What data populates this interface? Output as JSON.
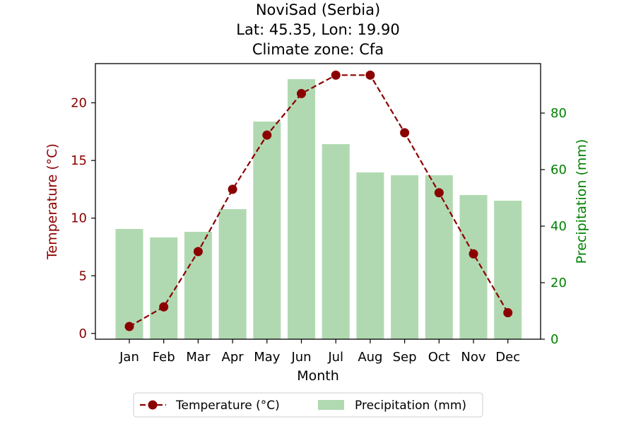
{
  "chart_data": {
    "type": "bar+line",
    "title_lines": [
      "NoviSad (Serbia)",
      "Lat: 45.35, Lon: 19.90",
      "Climate zone: Cfa"
    ],
    "categories": [
      "Jan",
      "Feb",
      "Mar",
      "Apr",
      "May",
      "Jun",
      "Jul",
      "Aug",
      "Sep",
      "Oct",
      "Nov",
      "Dec"
    ],
    "xlabel": "Month",
    "y_left": {
      "label": "Temperature (°C)",
      "lim": [
        -0.5,
        23.4
      ],
      "ticks": [
        0,
        5,
        10,
        15,
        20
      ],
      "color": "#8b0000"
    },
    "y_right": {
      "label": "Precipitation (mm)",
      "lim": [
        0,
        97.5
      ],
      "ticks": [
        0,
        20,
        40,
        60,
        80
      ],
      "color": "#008000"
    },
    "series": [
      {
        "name": "Temperature (°C)",
        "kind": "line",
        "axis": "left",
        "color": "#8b0000",
        "values": [
          0.6,
          2.3,
          7.1,
          12.5,
          17.2,
          20.8,
          22.4,
          22.4,
          17.4,
          12.2,
          6.9,
          1.8
        ]
      },
      {
        "name": "Precipitation (mm)",
        "kind": "bar",
        "axis": "right",
        "color": "#b1d9b1",
        "values": [
          39,
          36,
          38,
          46,
          77,
          92,
          69,
          59,
          58,
          58,
          51,
          49
        ]
      }
    ],
    "grid": false,
    "legend_position": "bottom-center"
  }
}
